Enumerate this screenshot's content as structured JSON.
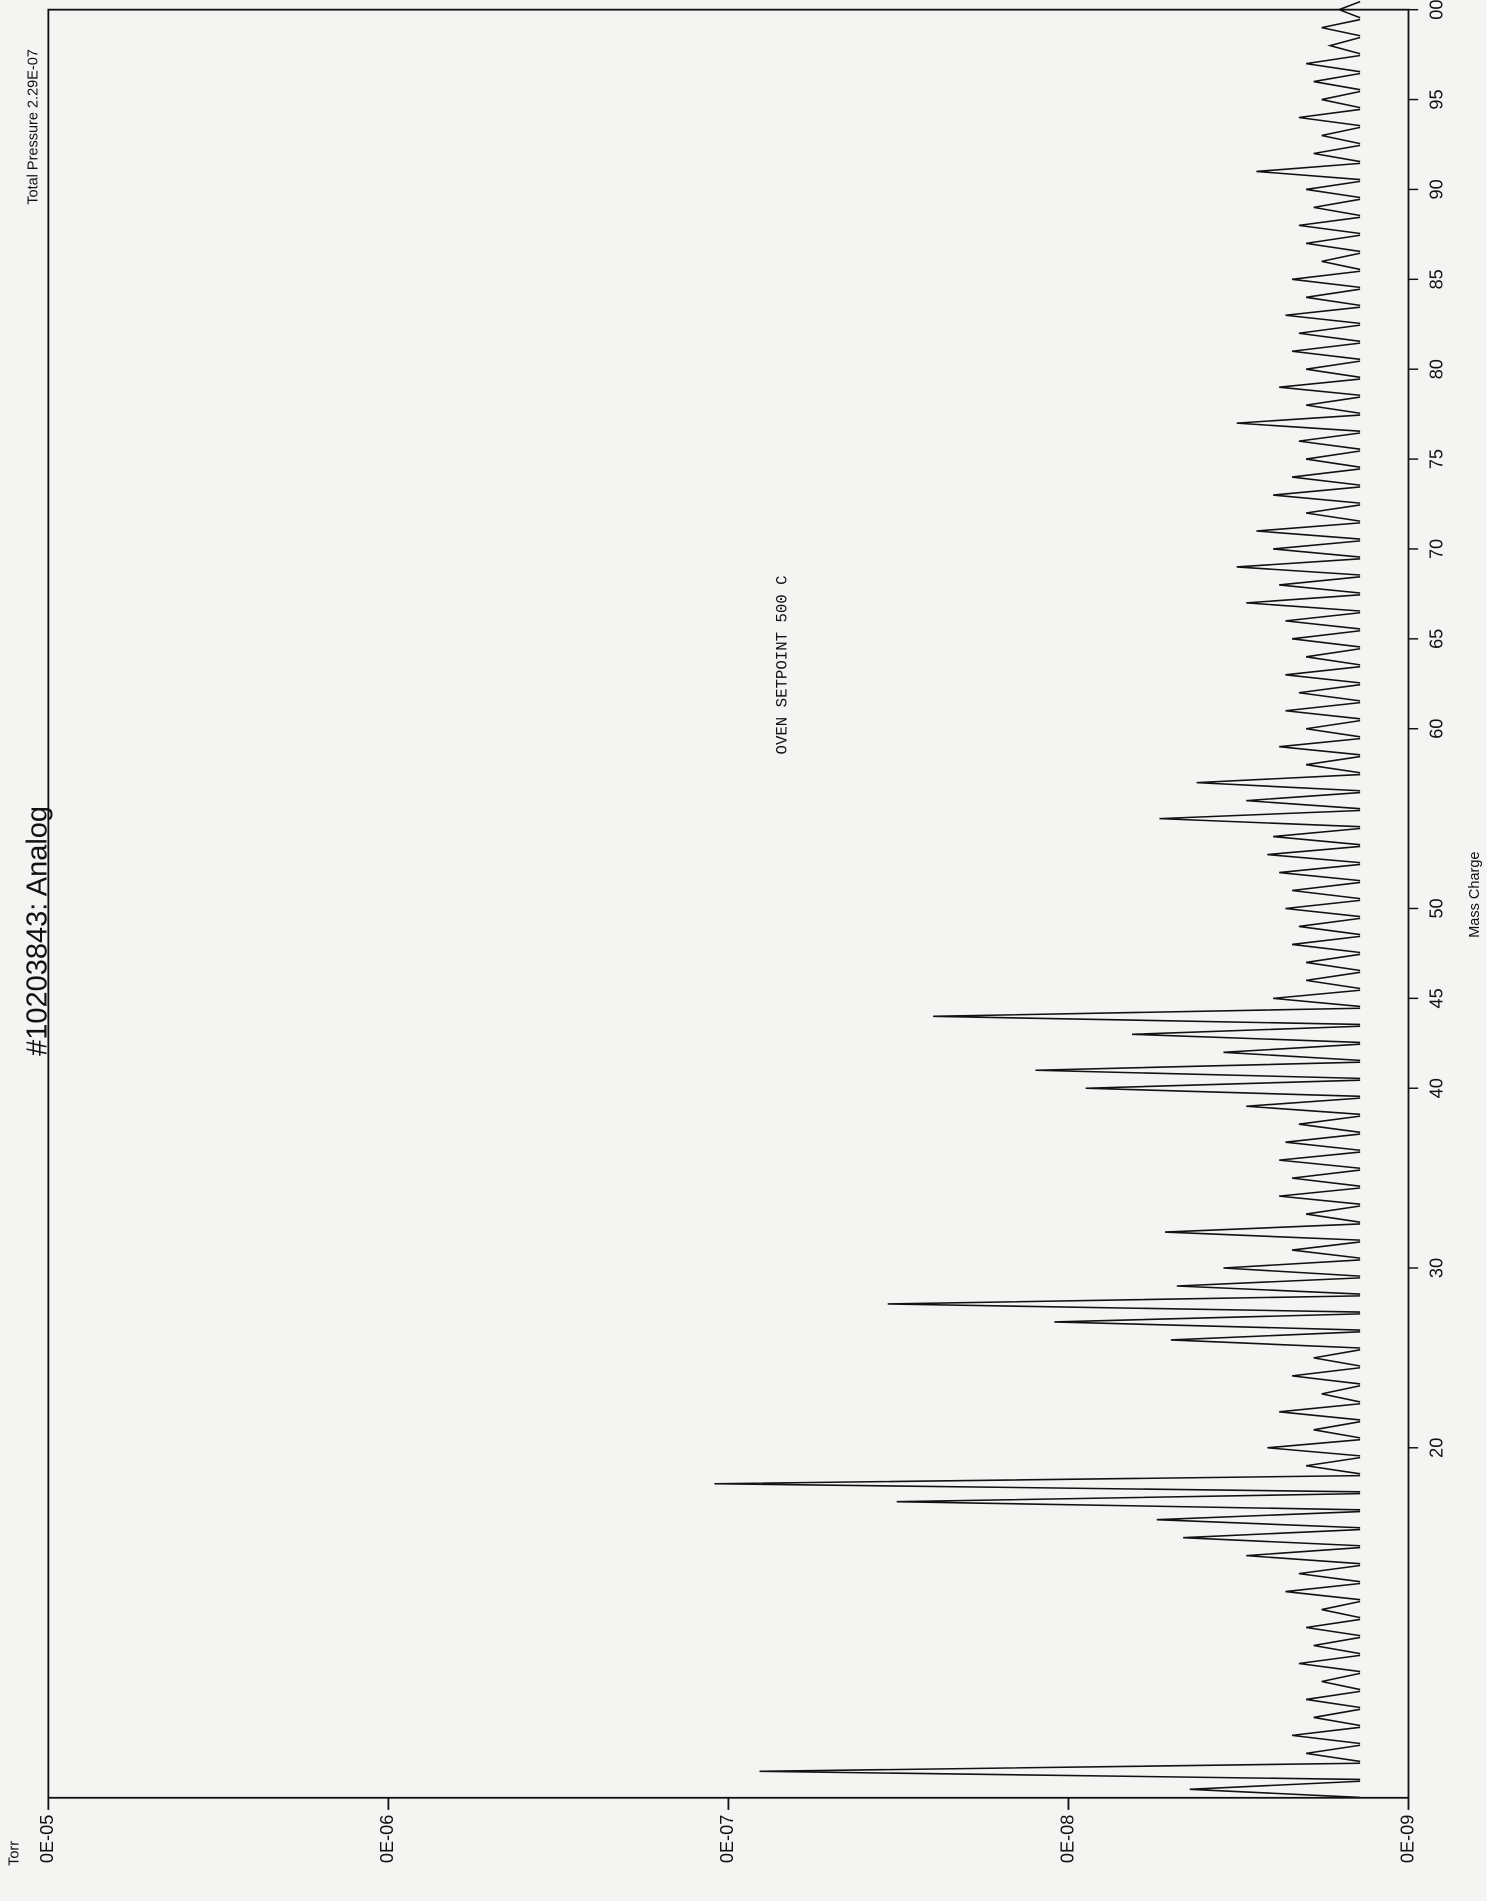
{
  "chart_data": {
    "type": "line",
    "title": "#10203843: Analog",
    "subtitle": "Total Pressure 2.29E-07",
    "y_unit": "Torr",
    "annotation": "OVEN SETPOINT 500 C",
    "x_label": "Mass Charge",
    "log_scale": true,
    "color": "#111111",
    "xlim": [
      1,
      100
    ],
    "xticks": [
      20,
      30,
      40,
      45,
      50,
      60,
      65,
      70,
      75,
      80,
      85,
      90,
      95,
      {
        "value": 100,
        "label": "00"
      }
    ],
    "ylim": [
      1e-09,
      1e-05
    ],
    "yticks": [
      {
        "value": 1e-05,
        "label": "0E-05"
      },
      {
        "value": 1e-06,
        "label": "0E-06"
      },
      {
        "value": 1e-07,
        "label": "0E-07"
      },
      {
        "value": 1e-08,
        "label": "0E-08"
      },
      {
        "value": 1e-09,
        "label": "0E-09"
      }
    ],
    "x": [
      1,
      2,
      3,
      4,
      5,
      6,
      7,
      8,
      9,
      10,
      11,
      12,
      13,
      14,
      15,
      16,
      17,
      18,
      19,
      20,
      21,
      22,
      23,
      24,
      25,
      26,
      27,
      28,
      29,
      30,
      31,
      32,
      33,
      34,
      35,
      36,
      37,
      38,
      39,
      40,
      41,
      42,
      43,
      44,
      45,
      46,
      47,
      48,
      49,
      50,
      51,
      52,
      53,
      54,
      55,
      56,
      57,
      58,
      59,
      60,
      61,
      62,
      63,
      64,
      65,
      66,
      67,
      68,
      69,
      70,
      71,
      72,
      73,
      74,
      75,
      76,
      77,
      78,
      79,
      80,
      81,
      82,
      83,
      84,
      85,
      86,
      87,
      88,
      89,
      90,
      91,
      92,
      93,
      94,
      95,
      96,
      97,
      98,
      99,
      100
    ],
    "values": [
      4.4e-09,
      8.1e-08,
      2e-09,
      2.2e-09,
      1.9e-09,
      2e-09,
      1.8e-09,
      2.1e-09,
      1.9e-09,
      2e-09,
      1.8e-09,
      2.3e-09,
      2.1e-09,
      3e-09,
      4.6e-09,
      5.5e-09,
      3.2e-08,
      1.1e-07,
      2e-09,
      2.6e-09,
      1.9e-09,
      2.4e-09,
      1.8e-09,
      2.2e-09,
      1.9e-09,
      5e-09,
      1.1e-08,
      3.4e-08,
      4.8e-09,
      3.5e-09,
      2.2e-09,
      5.2e-09,
      2e-09,
      2.4e-09,
      2.2e-09,
      2.4e-09,
      2.3e-09,
      2.1e-09,
      3e-09,
      8.9e-09,
      1.25e-08,
      3.5e-09,
      6.5e-09,
      2.5e-08,
      2.5e-09,
      2e-09,
      2e-09,
      2.2e-09,
      2.1e-09,
      2.3e-09,
      2.2e-09,
      2.4e-09,
      2.6e-09,
      2.5e-09,
      5.4e-09,
      3e-09,
      4.2e-09,
      2e-09,
      2.4e-09,
      2e-09,
      2.3e-09,
      2.1e-09,
      2.3e-09,
      2e-09,
      2.2e-09,
      2.3e-09,
      3e-09,
      2.4e-09,
      3.2e-09,
      2.5e-09,
      2.8e-09,
      2e-09,
      2.5e-09,
      2.2e-09,
      2e-09,
      2.1e-09,
      3.2e-09,
      2e-09,
      2.4e-09,
      2e-09,
      2.2e-09,
      2.1e-09,
      2.3e-09,
      2e-09,
      2.2e-09,
      1.8e-09,
      2e-09,
      2.1e-09,
      1.9e-09,
      2e-09,
      2.8e-09,
      1.9e-09,
      1.8e-09,
      2.1e-09,
      1.8e-09,
      1.9e-09,
      2e-09,
      1.7e-09,
      1.8e-09,
      1.6e-09
    ]
  }
}
